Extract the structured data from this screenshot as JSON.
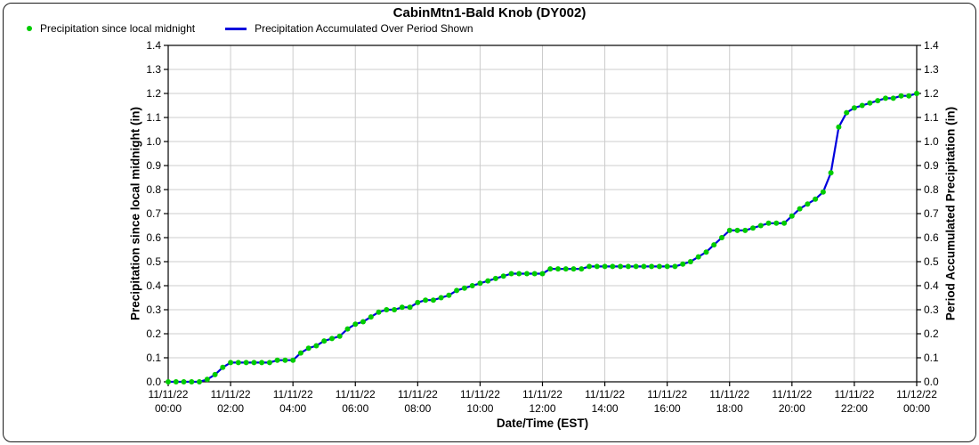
{
  "chart_title": "CabinMtn1-Bald Knob (DY002)",
  "legend": {
    "item1_label": "Precipitation since local midnight",
    "item2_label": "Precipitation Accumulated Over Period Shown"
  },
  "colors": {
    "dots_green": "#00cc00",
    "line_blue": "#0000dd",
    "grid_gray": "#cccccc",
    "axis_black": "#000000"
  },
  "chart_data": {
    "type": "line",
    "title": "CabinMtn1-Bald Knob (DY002)",
    "xlabel": "Date/Time (EST)",
    "ylabel_left": "Precipitation since local midnight (in)",
    "ylabel_right": "Period Accumulated Precipitation (in)",
    "ylim": [
      0.0,
      1.4
    ],
    "ytick_step": 0.1,
    "y_ticks": [
      "0.0",
      "0.1",
      "0.2",
      "0.3",
      "0.4",
      "0.5",
      "0.6",
      "0.7",
      "0.8",
      "0.9",
      "1.0",
      "1.1",
      "1.2",
      "1.3",
      "1.4"
    ],
    "x_range_hours": [
      0,
      24
    ],
    "x_tick_interval_hours": 2,
    "x_ticks": [
      {
        "date": "11/11/22",
        "time": "00:00"
      },
      {
        "date": "11/11/22",
        "time": "02:00"
      },
      {
        "date": "11/11/22",
        "time": "04:00"
      },
      {
        "date": "11/11/22",
        "time": "06:00"
      },
      {
        "date": "11/11/22",
        "time": "08:00"
      },
      {
        "date": "11/11/22",
        "time": "10:00"
      },
      {
        "date": "11/11/22",
        "time": "12:00"
      },
      {
        "date": "11/11/22",
        "time": "14:00"
      },
      {
        "date": "11/11/22",
        "time": "16:00"
      },
      {
        "date": "11/11/22",
        "time": "18:00"
      },
      {
        "date": "11/11/22",
        "time": "20:00"
      },
      {
        "date": "11/11/22",
        "time": "22:00"
      },
      {
        "date": "11/12/22",
        "time": "00:00"
      }
    ],
    "grid": true,
    "legend_position": "top-left",
    "x_start_hour": 0,
    "x_step_hours": 0.25,
    "values": [
      0.0,
      0.0,
      0.0,
      0.0,
      0.0,
      0.01,
      0.03,
      0.06,
      0.08,
      0.08,
      0.08,
      0.08,
      0.08,
      0.08,
      0.09,
      0.09,
      0.09,
      0.12,
      0.14,
      0.15,
      0.17,
      0.18,
      0.19,
      0.22,
      0.24,
      0.25,
      0.27,
      0.29,
      0.3,
      0.3,
      0.31,
      0.31,
      0.33,
      0.34,
      0.34,
      0.35,
      0.36,
      0.38,
      0.39,
      0.4,
      0.41,
      0.42,
      0.43,
      0.44,
      0.45,
      0.45,
      0.45,
      0.45,
      0.45,
      0.47,
      0.47,
      0.47,
      0.47,
      0.47,
      0.48,
      0.48,
      0.48,
      0.48,
      0.48,
      0.48,
      0.48,
      0.48,
      0.48,
      0.48,
      0.48,
      0.48,
      0.49,
      0.5,
      0.52,
      0.54,
      0.57,
      0.6,
      0.63,
      0.63,
      0.63,
      0.64,
      0.65,
      0.66,
      0.66,
      0.66,
      0.69,
      0.72,
      0.74,
      0.76,
      0.79,
      0.87,
      1.06,
      1.12,
      1.14,
      1.15,
      1.16,
      1.17,
      1.18,
      1.18,
      1.19,
      1.19,
      1.2
    ],
    "series": [
      {
        "name": "Precipitation since local midnight",
        "style": "scatter",
        "marker": "dot",
        "color": "#00cc00",
        "uses": "values"
      },
      {
        "name": "Precipitation Accumulated Over Period Shown",
        "style": "line",
        "color": "#0000dd",
        "uses": "values"
      }
    ]
  }
}
